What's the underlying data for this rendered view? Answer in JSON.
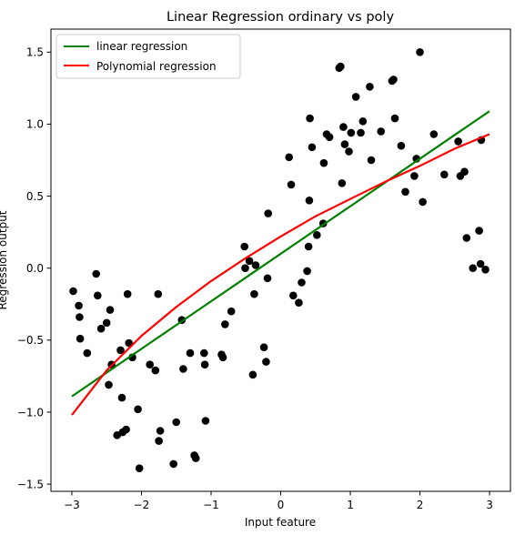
{
  "chart_data": {
    "type": "scatter",
    "title": "Linear Regression ordinary vs poly",
    "xlabel": "Input feature",
    "ylabel": "Regression output",
    "xlim": [
      -3.3,
      3.3
    ],
    "ylim": [
      -1.55,
      1.66
    ],
    "xticks": [
      -3,
      -2,
      -1,
      0,
      1,
      2,
      3
    ],
    "yticks": [
      -1.5,
      -1.0,
      -0.5,
      0.0,
      0.5,
      1.0,
      1.5
    ],
    "xtick_labels": [
      "−3",
      "−2",
      "−1",
      "0",
      "1",
      "2",
      "3"
    ],
    "ytick_labels": [
      "−1.5",
      "−1.0",
      "−0.5",
      "0.0",
      "0.5",
      "1.0",
      "1.5"
    ],
    "grid": false,
    "legend_position": "top-left",
    "points": {
      "color": "#000000",
      "x": [
        -2.98,
        -2.9,
        -2.89,
        -2.88,
        -2.78,
        -2.65,
        -2.63,
        -2.58,
        -2.5,
        -2.47,
        -2.45,
        -2.43,
        -2.35,
        -2.3,
        -2.28,
        -2.27,
        -2.22,
        -2.2,
        -2.18,
        -2.13,
        -2.05,
        -2.03,
        -1.88,
        -1.8,
        -1.76,
        -1.75,
        -1.73,
        -1.54,
        -1.5,
        -1.42,
        -1.4,
        -1.3,
        -1.24,
        -1.22,
        -1.1,
        -1.09,
        -1.08,
        -0.85,
        -0.83,
        -0.8,
        -0.71,
        -0.52,
        -0.51,
        -0.45,
        -0.4,
        -0.38,
        -0.36,
        -0.24,
        -0.21,
        -0.19,
        -0.18,
        0.12,
        0.15,
        0.18,
        0.26,
        0.3,
        0.38,
        0.4,
        0.41,
        0.42,
        0.45,
        0.52,
        0.61,
        0.62,
        0.66,
        0.7,
        0.84,
        0.86,
        0.88,
        0.9,
        0.92,
        0.98,
        1.01,
        1.08,
        1.15,
        1.18,
        1.28,
        1.3,
        1.44,
        1.6,
        1.62,
        1.64,
        1.73,
        1.79,
        1.92,
        1.95,
        2.0,
        2.04,
        2.2,
        2.35,
        2.55,
        2.58,
        2.64,
        2.67,
        2.76,
        2.85,
        2.87,
        2.88,
        2.94
      ],
      "y": [
        -0.16,
        -0.26,
        -0.34,
        -0.49,
        -0.59,
        -0.04,
        -0.19,
        -0.42,
        -0.38,
        -0.81,
        -0.29,
        -0.67,
        -1.16,
        -0.57,
        -0.9,
        -1.14,
        -1.12,
        -0.18,
        -0.52,
        -0.62,
        -0.98,
        -1.39,
        -0.67,
        -0.71,
        -0.18,
        -1.2,
        -1.13,
        -1.36,
        -1.07,
        -0.36,
        -0.7,
        -0.59,
        -1.3,
        -1.32,
        -0.59,
        -0.67,
        -1.06,
        -0.6,
        -0.62,
        -0.39,
        -0.3,
        0.15,
        0.0,
        0.05,
        -0.74,
        -0.18,
        0.02,
        -0.55,
        -0.65,
        -0.07,
        0.38,
        0.77,
        0.58,
        -0.19,
        -0.24,
        -0.1,
        -0.02,
        0.15,
        0.47,
        1.04,
        0.84,
        0.23,
        0.31,
        0.73,
        0.93,
        0.91,
        1.39,
        1.4,
        0.59,
        0.98,
        0.86,
        0.81,
        0.94,
        1.19,
        0.94,
        1.02,
        1.26,
        0.75,
        0.95,
        1.3,
        1.31,
        1.04,
        0.85,
        0.53,
        0.64,
        0.76,
        1.5,
        0.46,
        0.93,
        0.65,
        0.88,
        0.64,
        0.67,
        0.21,
        0.0,
        0.26,
        0.03,
        0.89,
        -0.01
      ]
    },
    "series": [
      {
        "name": "linear regression",
        "type": "line",
        "color": "#008000",
        "x": [
          -3,
          3
        ],
        "y": [
          -0.89,
          1.09
        ]
      },
      {
        "name": "Polynomial regression",
        "type": "line",
        "color": "#ff0000",
        "x": [
          -3,
          -2.5,
          -2,
          -1.5,
          -1,
          -0.5,
          0,
          0.5,
          1,
          1.5,
          2,
          2.5,
          3
        ],
        "y": [
          -1.02,
          -0.71,
          -0.47,
          -0.27,
          -0.09,
          0.07,
          0.22,
          0.36,
          0.48,
          0.6,
          0.71,
          0.83,
          0.93
        ]
      }
    ]
  }
}
